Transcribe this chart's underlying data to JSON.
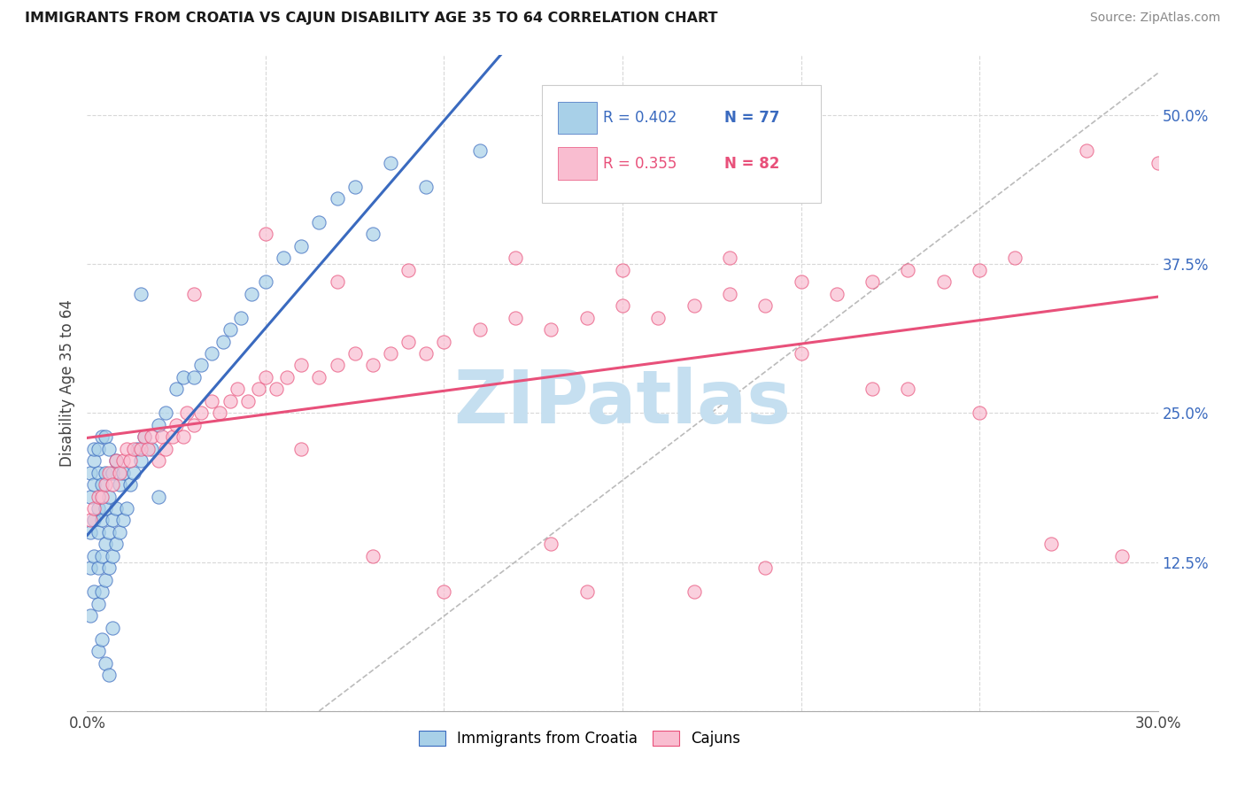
{
  "title": "IMMIGRANTS FROM CROATIA VS CAJUN DISABILITY AGE 35 TO 64 CORRELATION CHART",
  "source": "Source: ZipAtlas.com",
  "ylabel": "Disability Age 35 to 64",
  "x_min": 0.0,
  "x_max": 0.3,
  "y_min": 0.0,
  "y_max": 0.55,
  "x_ticks": [
    0.0,
    0.05,
    0.1,
    0.15,
    0.2,
    0.25,
    0.3
  ],
  "y_ticks": [
    0.0,
    0.125,
    0.25,
    0.375,
    0.5
  ],
  "y_tick_labels": [
    "",
    "12.5%",
    "25.0%",
    "37.5%",
    "50.0%"
  ],
  "color_croatia": "#a8d0e8",
  "color_cajun": "#f9bdd0",
  "color_trendline_croatia": "#3a6abf",
  "color_trendline_cajun": "#e8507a",
  "color_dashed_line": "#bbbbbb",
  "watermark": "ZIPatlas",
  "watermark_color": "#c5dff0",
  "background_color": "#ffffff",
  "grid_color": "#d8d8d8",
  "croatia_x": [
    0.001,
    0.001,
    0.001,
    0.001,
    0.001,
    0.002,
    0.002,
    0.002,
    0.002,
    0.002,
    0.002,
    0.003,
    0.003,
    0.003,
    0.003,
    0.003,
    0.003,
    0.004,
    0.004,
    0.004,
    0.004,
    0.004,
    0.005,
    0.005,
    0.005,
    0.005,
    0.005,
    0.006,
    0.006,
    0.006,
    0.006,
    0.007,
    0.007,
    0.007,
    0.008,
    0.008,
    0.008,
    0.009,
    0.009,
    0.01,
    0.01,
    0.011,
    0.012,
    0.013,
    0.014,
    0.015,
    0.016,
    0.018,
    0.02,
    0.022,
    0.025,
    0.027,
    0.03,
    0.032,
    0.035,
    0.038,
    0.04,
    0.043,
    0.046,
    0.05,
    0.055,
    0.06,
    0.065,
    0.07,
    0.075,
    0.085,
    0.095,
    0.11,
    0.13,
    0.015,
    0.003,
    0.004,
    0.005,
    0.006,
    0.007,
    0.02,
    0.08
  ],
  "croatia_y": [
    0.08,
    0.12,
    0.15,
    0.18,
    0.2,
    0.1,
    0.13,
    0.16,
    0.19,
    0.21,
    0.22,
    0.09,
    0.12,
    0.15,
    0.17,
    0.2,
    0.22,
    0.1,
    0.13,
    0.16,
    0.19,
    0.23,
    0.11,
    0.14,
    0.17,
    0.2,
    0.23,
    0.12,
    0.15,
    0.18,
    0.22,
    0.13,
    0.16,
    0.2,
    0.14,
    0.17,
    0.21,
    0.15,
    0.19,
    0.16,
    0.2,
    0.17,
    0.19,
    0.2,
    0.22,
    0.21,
    0.23,
    0.22,
    0.24,
    0.25,
    0.27,
    0.28,
    0.28,
    0.29,
    0.3,
    0.31,
    0.32,
    0.33,
    0.35,
    0.36,
    0.38,
    0.39,
    0.41,
    0.43,
    0.44,
    0.46,
    0.44,
    0.47,
    0.49,
    0.35,
    0.05,
    0.06,
    0.04,
    0.03,
    0.07,
    0.18,
    0.4
  ],
  "cajun_x": [
    0.001,
    0.002,
    0.003,
    0.004,
    0.005,
    0.006,
    0.007,
    0.008,
    0.009,
    0.01,
    0.011,
    0.012,
    0.013,
    0.015,
    0.016,
    0.017,
    0.018,
    0.02,
    0.021,
    0.022,
    0.024,
    0.025,
    0.027,
    0.028,
    0.03,
    0.032,
    0.035,
    0.037,
    0.04,
    0.042,
    0.045,
    0.048,
    0.05,
    0.053,
    0.056,
    0.06,
    0.065,
    0.07,
    0.075,
    0.08,
    0.085,
    0.09,
    0.095,
    0.1,
    0.11,
    0.12,
    0.13,
    0.14,
    0.15,
    0.16,
    0.17,
    0.18,
    0.19,
    0.2,
    0.21,
    0.22,
    0.23,
    0.24,
    0.25,
    0.26,
    0.28,
    0.3,
    0.05,
    0.07,
    0.09,
    0.12,
    0.15,
    0.18,
    0.22,
    0.25,
    0.03,
    0.06,
    0.1,
    0.14,
    0.2,
    0.08,
    0.13,
    0.17,
    0.19,
    0.27,
    0.29,
    0.23
  ],
  "cajun_y": [
    0.16,
    0.17,
    0.18,
    0.18,
    0.19,
    0.2,
    0.19,
    0.21,
    0.2,
    0.21,
    0.22,
    0.21,
    0.22,
    0.22,
    0.23,
    0.22,
    0.23,
    0.21,
    0.23,
    0.22,
    0.23,
    0.24,
    0.23,
    0.25,
    0.24,
    0.25,
    0.26,
    0.25,
    0.26,
    0.27,
    0.26,
    0.27,
    0.28,
    0.27,
    0.28,
    0.29,
    0.28,
    0.29,
    0.3,
    0.29,
    0.3,
    0.31,
    0.3,
    0.31,
    0.32,
    0.33,
    0.32,
    0.33,
    0.34,
    0.33,
    0.34,
    0.35,
    0.34,
    0.36,
    0.35,
    0.36,
    0.37,
    0.36,
    0.37,
    0.38,
    0.47,
    0.46,
    0.4,
    0.36,
    0.37,
    0.38,
    0.37,
    0.38,
    0.27,
    0.25,
    0.35,
    0.22,
    0.1,
    0.1,
    0.3,
    0.13,
    0.14,
    0.1,
    0.12,
    0.14,
    0.13,
    0.27
  ]
}
